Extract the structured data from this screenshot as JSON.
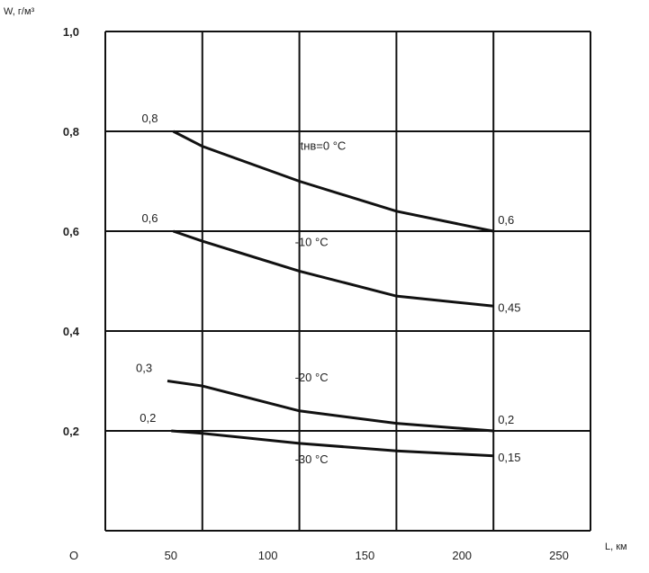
{
  "chart_data": {
    "type": "line",
    "title": "",
    "xlabel": "L, км",
    "ylabel": "W, г/м³",
    "xlim": [
      0,
      250
    ],
    "ylim": [
      0,
      1.0
    ],
    "grid": true,
    "x_ticks": [
      0,
      50,
      100,
      150,
      200,
      250
    ],
    "x_tick_labels": [
      "O",
      "50",
      "100",
      "150",
      "200",
      "250"
    ],
    "y_ticks": [
      0.2,
      0.4,
      0.6,
      0.8,
      1.0
    ],
    "y_tick_labels": [
      "0,2",
      "0,4",
      "0,6",
      "0,8",
      "1,0"
    ],
    "series": [
      {
        "name": "tнв=0 °C",
        "x": [
          35,
          50,
          100,
          150,
          200
        ],
        "y": [
          0.8,
          0.77,
          0.7,
          0.64,
          0.6
        ],
        "start_label": "0,8",
        "end_label": "0,6"
      },
      {
        "name": "-10 °C",
        "x": [
          35,
          50,
          100,
          150,
          200
        ],
        "y": [
          0.6,
          0.58,
          0.52,
          0.47,
          0.45
        ],
        "start_label": "0,6",
        "end_label": "0,45"
      },
      {
        "name": "-20 °C",
        "x": [
          32,
          50,
          100,
          150,
          200
        ],
        "y": [
          0.3,
          0.29,
          0.24,
          0.215,
          0.2
        ],
        "start_label": "0,3",
        "end_label": "0,2"
      },
      {
        "name": "-30 °C",
        "x": [
          34,
          50,
          100,
          150,
          200
        ],
        "y": [
          0.2,
          0.195,
          0.175,
          0.16,
          0.15
        ],
        "start_label": "0,2",
        "end_label": "0,15"
      }
    ]
  }
}
